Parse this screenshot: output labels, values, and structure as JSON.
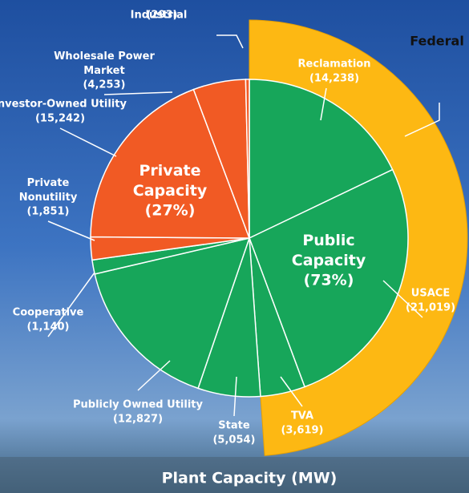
{
  "chart_data": {
    "type": "pie",
    "title": "Plant Capacity (MW)",
    "categories": [
      "Reclamation",
      "USACE",
      "TVA",
      "State",
      "Publicly Owned Utility",
      "Cooperative",
      "Private Nonutility",
      "Investor-Owned Utility",
      "Wholesale Power Market",
      "Industrial"
    ],
    "values": [
      14238,
      21019,
      3619,
      5054,
      12827,
      1140,
      1851,
      15242,
      4253,
      293
    ],
    "value_labels": [
      "(14,238)",
      "(21,019)",
      "(3,619)",
      "(5,054)",
      "(12,827)",
      "(1,140)",
      "(1,851)",
      "(15,242)",
      "(4,253)",
      "(293)"
    ],
    "colors": [
      "#17a65a",
      "#17a65a",
      "#17a65a",
      "#17a65a",
      "#17a65a",
      "#17a65a",
      "#f15a24",
      "#f15a24",
      "#f15a24",
      "#f15a24"
    ],
    "groups": [
      {
        "name": "Public Capacity",
        "value": 73,
        "value_label": "(73%)"
      },
      {
        "name": "Private Capacity",
        "value": 27,
        "value_label": "(27%)"
      }
    ],
    "arc": {
      "label": "Federal",
      "color": "#fdb813"
    }
  }
}
